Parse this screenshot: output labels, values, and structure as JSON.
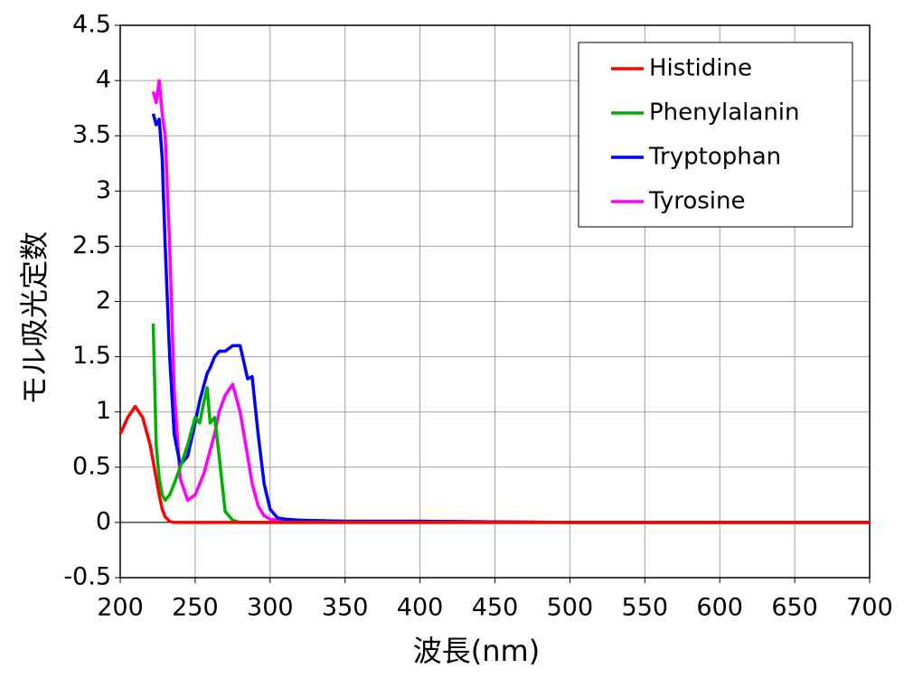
{
  "chart_data": {
    "type": "line",
    "x_label": "波長(nm)",
    "y_label": "モル吸光定数",
    "x": [
      200,
      205,
      210,
      215,
      220,
      222,
      224,
      226,
      228,
      230,
      233,
      236,
      240,
      245,
      250,
      253,
      256,
      258,
      260,
      263,
      266,
      270,
      275,
      280,
      285,
      288,
      292,
      296,
      300,
      305,
      310,
      320,
      350,
      400,
      500,
      600,
      700
    ],
    "series": [
      {
        "name": "Histidine",
        "color": "#ff0000",
        "values": [
          0.8,
          0.95,
          1.05,
          0.95,
          0.7,
          0.55,
          0.4,
          0.25,
          0.12,
          0.05,
          0.01,
          0,
          0,
          0,
          0,
          0,
          0,
          0,
          0,
          0,
          0,
          0,
          0,
          0,
          0,
          0,
          0,
          0,
          0,
          0,
          0,
          0,
          0,
          0,
          0,
          0,
          0
        ]
      },
      {
        "name": "Phenylalanin",
        "color": "#00b000",
        "values": [
          null,
          null,
          null,
          null,
          null,
          1.8,
          0.7,
          0.4,
          0.25,
          0.2,
          0.25,
          0.35,
          0.5,
          0.7,
          0.95,
          0.9,
          1.1,
          1.22,
          0.9,
          0.95,
          0.6,
          0.1,
          0.02,
          0,
          0,
          0,
          0,
          0,
          0,
          0,
          0,
          0,
          0,
          0,
          0,
          0,
          0
        ]
      },
      {
        "name": "Tryptophan",
        "color": "#0000ff",
        "values": [
          null,
          null,
          null,
          null,
          null,
          3.7,
          3.6,
          3.65,
          3.3,
          2.5,
          1.5,
          0.8,
          0.52,
          0.6,
          0.9,
          1.1,
          1.25,
          1.35,
          1.4,
          1.5,
          1.55,
          1.55,
          1.6,
          1.6,
          1.3,
          1.32,
          0.8,
          0.35,
          0.12,
          0.04,
          0.03,
          0.02,
          0.01,
          0.01,
          0,
          0,
          0
        ]
      },
      {
        "name": "Tyrosine",
        "color": "#ff00ff",
        "values": [
          null,
          null,
          null,
          null,
          null,
          3.9,
          3.8,
          4.0,
          3.7,
          3.5,
          2.5,
          1.2,
          0.4,
          0.2,
          0.25,
          0.35,
          0.45,
          0.55,
          0.65,
          0.8,
          1.0,
          1.15,
          1.25,
          1.0,
          0.6,
          0.35,
          0.15,
          0.06,
          0.03,
          0.02,
          0.02,
          0.02,
          0.01,
          0.01,
          0,
          0,
          0
        ]
      }
    ],
    "xlim": [
      200,
      700
    ],
    "xticks": [
      200,
      250,
      300,
      350,
      400,
      450,
      500,
      550,
      600,
      650,
      700
    ],
    "ylim": [
      -0.5,
      4.5
    ],
    "yticks": [
      -0.5,
      0,
      0.5,
      1,
      1.5,
      2,
      2.5,
      3,
      3.5,
      4,
      4.5
    ],
    "grid": true,
    "legend": "upper right"
  }
}
